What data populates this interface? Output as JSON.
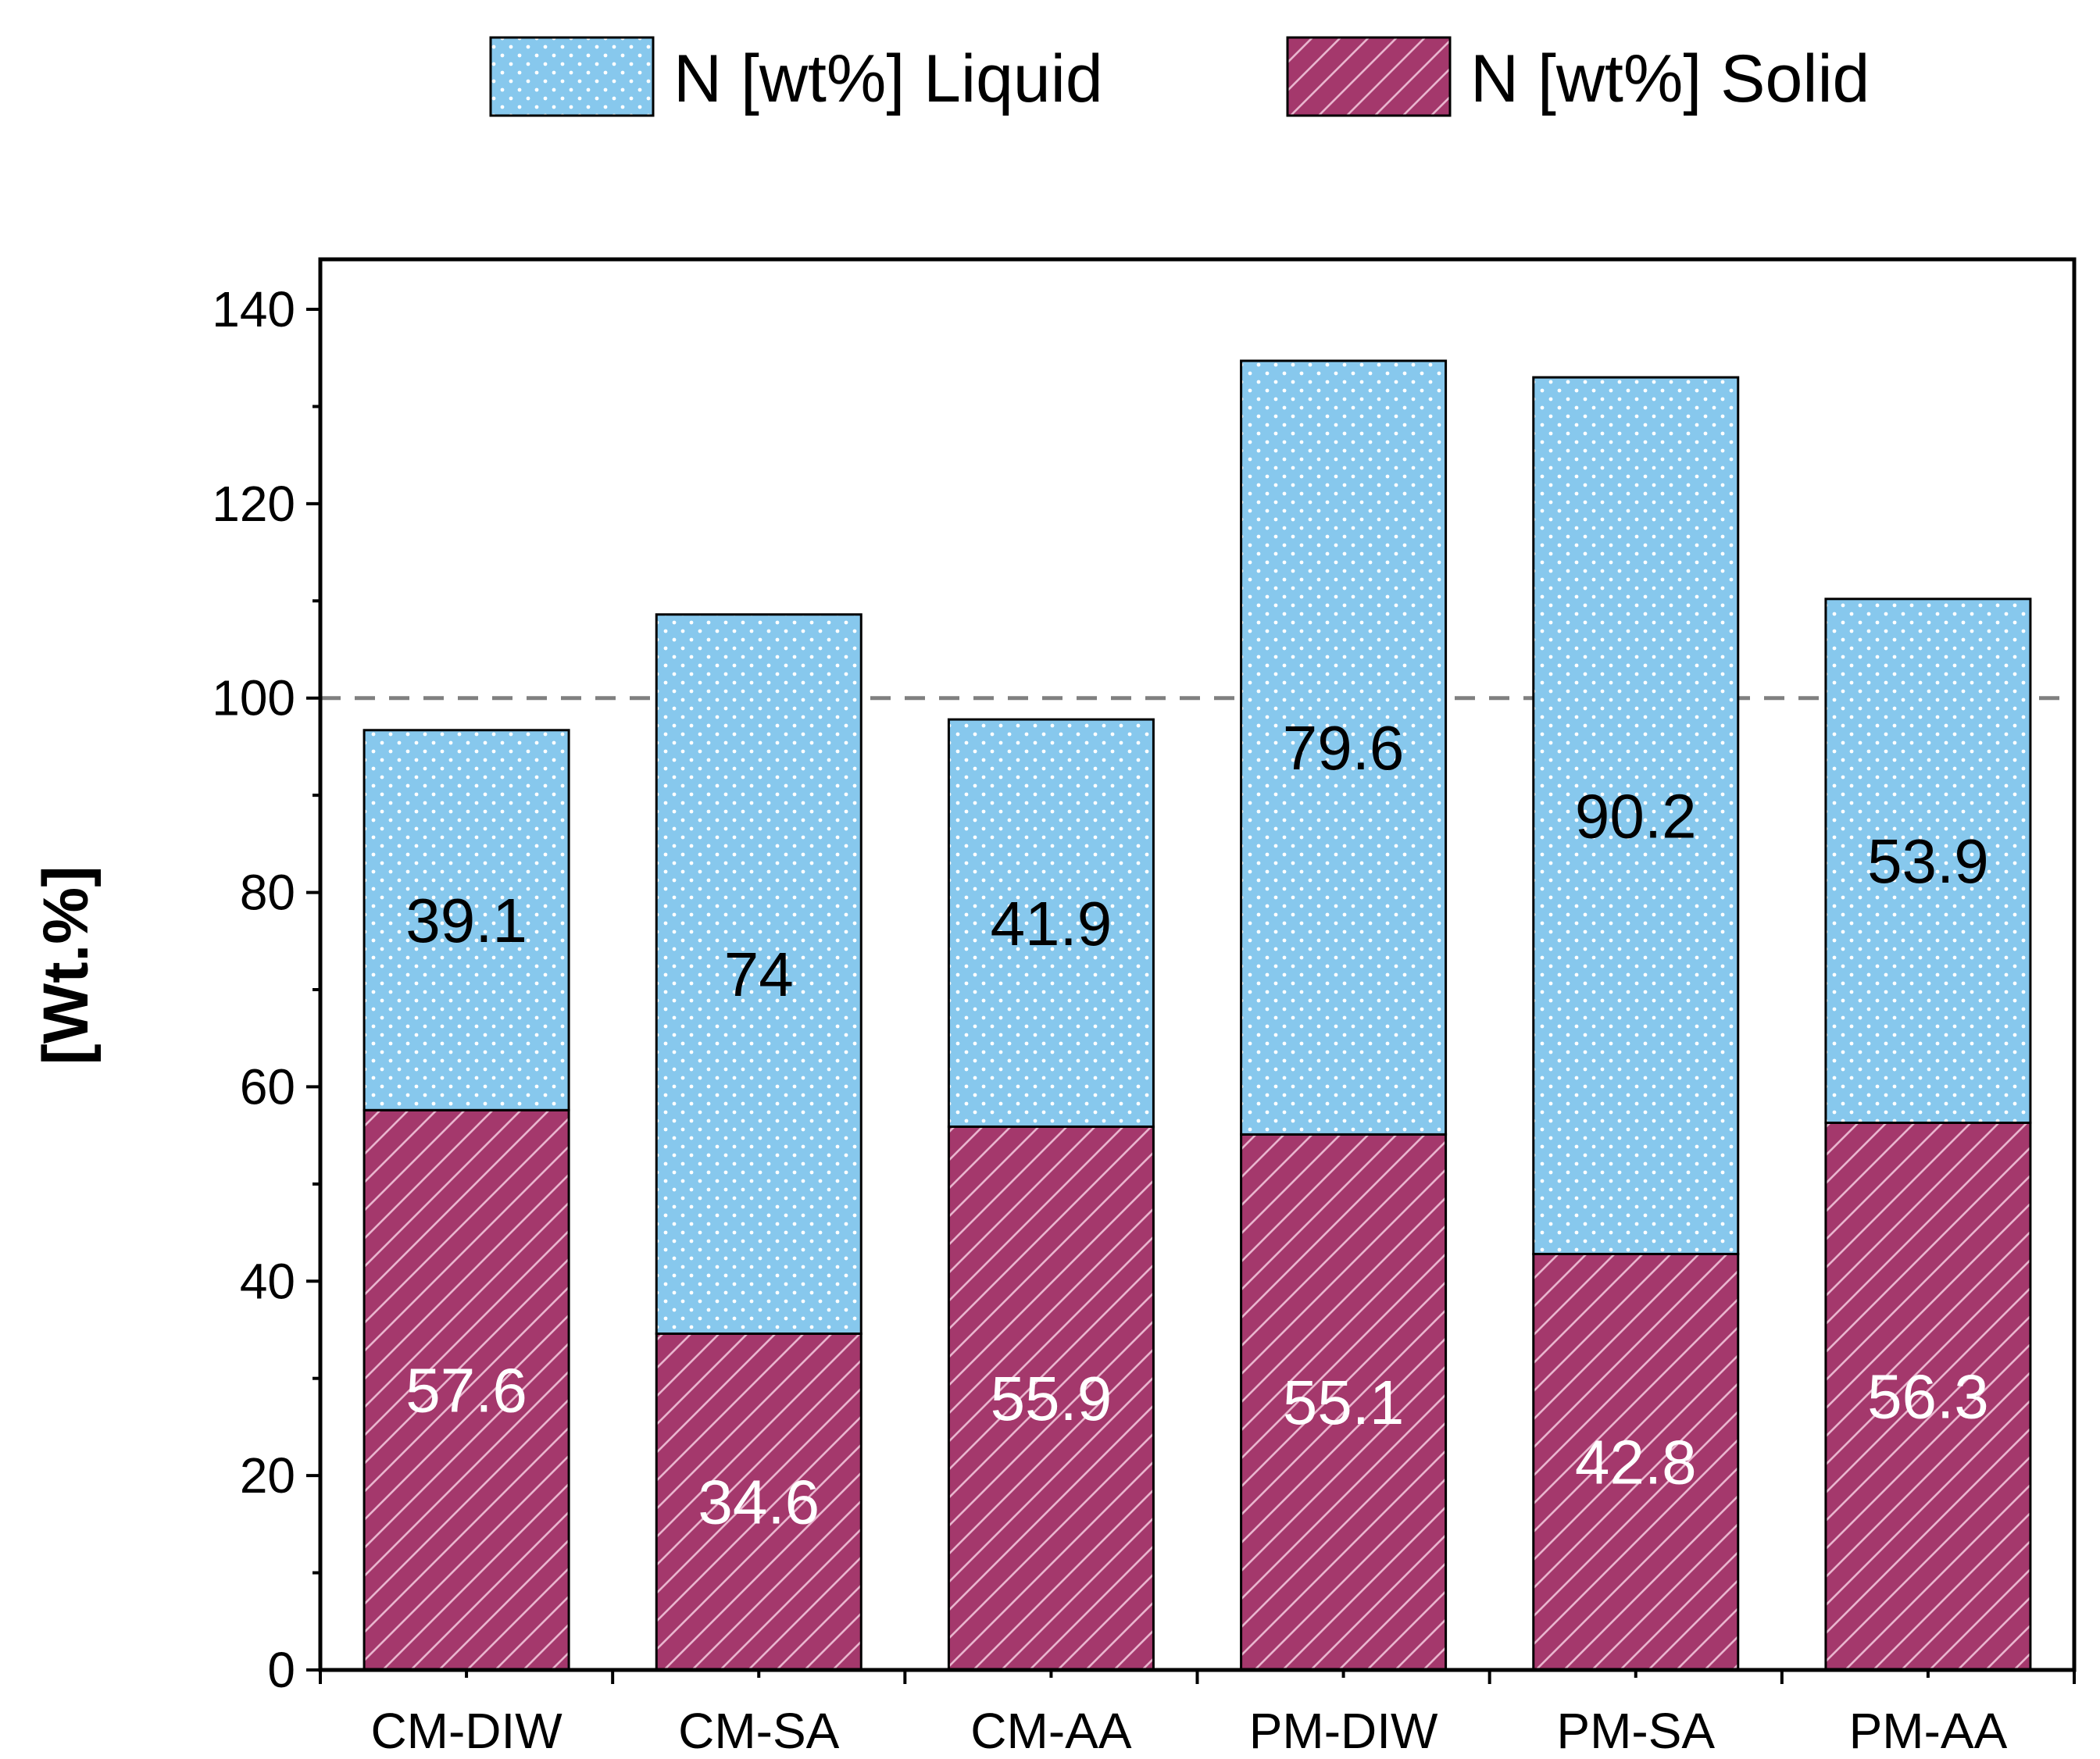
{
  "chart_data": {
    "type": "bar",
    "stacked": true,
    "title": "",
    "xlabel": "",
    "ylabel": "[Wt.%]",
    "ylim": [
      0,
      145
    ],
    "yticks": [
      0,
      20,
      40,
      60,
      80,
      100,
      120,
      140
    ],
    "reference_line": {
      "y": 100,
      "style": "dashed",
      "color": "#808080"
    },
    "categories": [
      "CM-DIW",
      "CM-SA",
      "CM-AA",
      "PM-DIW",
      "PM-SA",
      "PM-AA"
    ],
    "series": [
      {
        "name": "N [wt%] Solid",
        "values": [
          57.6,
          34.6,
          55.9,
          55.1,
          42.8,
          56.3
        ],
        "labels": [
          "57.6",
          "34.6",
          "55.9",
          "55.1",
          "42.8",
          "56.3"
        ],
        "color": "#A4386C",
        "pattern": "diagonal-hatch",
        "label_color": "#FFFFFF"
      },
      {
        "name": "N [wt%] Liquid",
        "values": [
          39.1,
          74,
          41.9,
          79.6,
          90.2,
          53.9
        ],
        "labels": [
          "39.1",
          "74",
          "41.9",
          "79.6",
          "90.2",
          "53.9"
        ],
        "color": "#87C8ED",
        "pattern": "dots",
        "label_color": "#000000"
      }
    ],
    "legend": {
      "placement": "top-center",
      "entries": [
        {
          "label": "N [wt%] Liquid",
          "color": "#87C8ED",
          "pattern": "dots"
        },
        {
          "label": "N [wt%] Solid",
          "color": "#A4386C",
          "pattern": "diagonal-hatch"
        }
      ]
    }
  }
}
